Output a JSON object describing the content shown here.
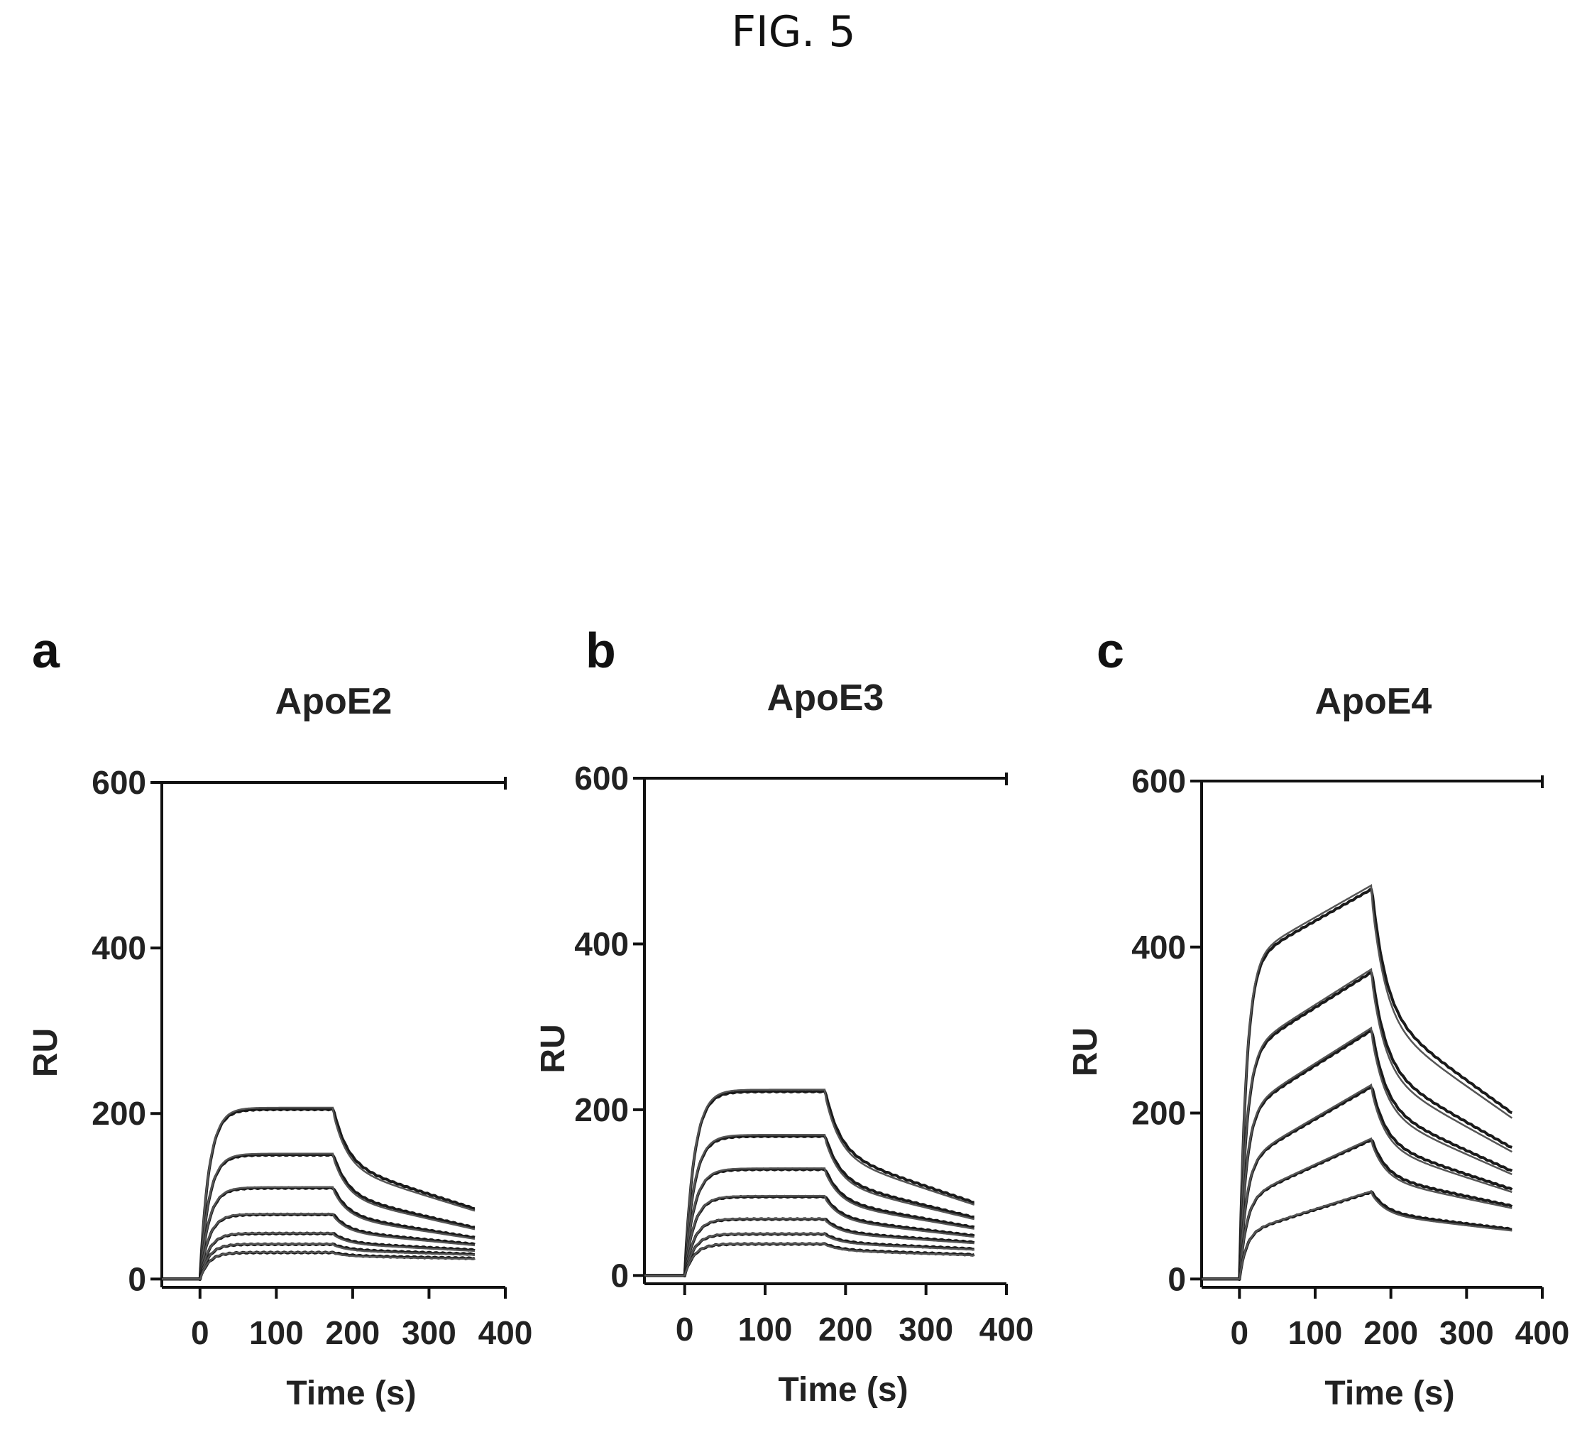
{
  "figure": {
    "title": "FIG. 5"
  },
  "chart_data": [
    {
      "type": "line",
      "panel": "a",
      "title": "ApoE2",
      "xlabel": "Time (s)",
      "ylabel": "RU",
      "xlim": [
        -50,
        400
      ],
      "ylim": [
        -10,
        600
      ],
      "xticks": [
        0,
        100,
        200,
        300,
        400
      ],
      "yticks": [
        0,
        200,
        400,
        600
      ],
      "x_tick_labels": [
        "0",
        "100",
        "200",
        "300",
        "400"
      ],
      "y_tick_labels": [
        "0",
        "200",
        "400",
        "600"
      ],
      "association_end_s": 175,
      "end_s": 360,
      "series": [
        {
          "peak": 205,
          "end": 85
        },
        {
          "peak": 150,
          "end": 62
        },
        {
          "peak": 110,
          "end": 50
        },
        {
          "peak": 78,
          "end": 42
        },
        {
          "peak": 55,
          "end": 35
        },
        {
          "peak": 42,
          "end": 30
        },
        {
          "peak": 32,
          "end": 25
        }
      ]
    },
    {
      "type": "line",
      "panel": "b",
      "title": "ApoE3",
      "xlabel": "Time (s)",
      "ylabel": "RU",
      "xlim": [
        -50,
        400
      ],
      "ylim": [
        -10,
        600
      ],
      "xticks": [
        0,
        100,
        200,
        300,
        400
      ],
      "yticks": [
        0,
        200,
        400,
        600
      ],
      "x_tick_labels": [
        "0",
        "100",
        "200",
        "300",
        "400"
      ],
      "y_tick_labels": [
        "0",
        "200",
        "400",
        "600"
      ],
      "association_end_s": 175,
      "end_s": 360,
      "series": [
        {
          "peak": 222,
          "end": 88
        },
        {
          "peak": 168,
          "end": 70
        },
        {
          "peak": 128,
          "end": 58
        },
        {
          "peak": 95,
          "end": 48
        },
        {
          "peak": 68,
          "end": 40
        },
        {
          "peak": 50,
          "end": 32
        },
        {
          "peak": 38,
          "end": 25
        }
      ]
    },
    {
      "type": "line",
      "panel": "c",
      "title": "ApoE4",
      "xlabel": "Time (s)",
      "ylabel": "RU",
      "xlim": [
        -50,
        400
      ],
      "ylim": [
        -10,
        600
      ],
      "xticks": [
        0,
        100,
        200,
        300,
        400
      ],
      "yticks": [
        0,
        200,
        400,
        600
      ],
      "x_tick_labels": [
        "0",
        "100",
        "200",
        "300",
        "400"
      ],
      "y_tick_labels": [
        "0",
        "200",
        "400",
        "600"
      ],
      "association_end_s": 175,
      "end_s": 360,
      "series": [
        {
          "peak": 470,
          "end": 200,
          "knee": 380
        },
        {
          "peak": 370,
          "end": 158,
          "knee": 270
        },
        {
          "peak": 300,
          "end": 130,
          "knee": 200
        },
        {
          "peak": 232,
          "end": 108,
          "knee": 140
        },
        {
          "peak": 168,
          "end": 88,
          "knee": 95
        },
        {
          "peak": 105,
          "end": 60,
          "knee": 55
        }
      ]
    }
  ]
}
